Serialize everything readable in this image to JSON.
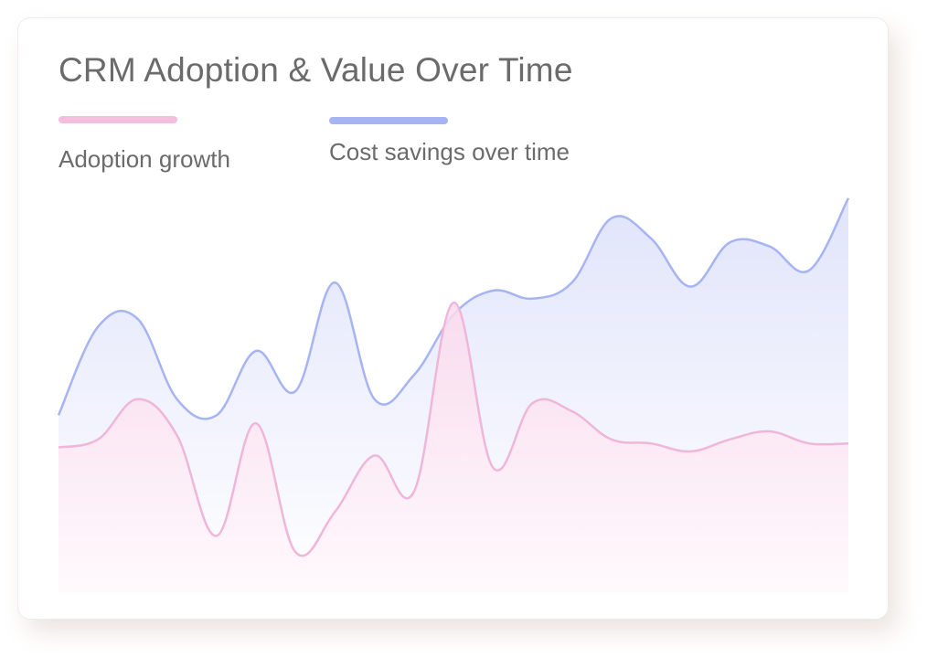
{
  "chart_data": {
    "type": "area",
    "title": "CRM Adoption & Value Over Time",
    "xlabel": "",
    "ylabel": "",
    "grid": false,
    "legend_position": "top-left",
    "x": [
      0,
      1,
      2,
      3,
      4,
      5,
      6,
      7,
      8,
      9,
      10,
      11,
      12,
      13,
      14,
      15,
      16,
      17,
      18,
      19,
      20
    ],
    "ylim": [
      0,
      100
    ],
    "series": [
      {
        "name": "Cost savings over time",
        "color": "#a6b4f4",
        "values": [
          44,
          66,
          68,
          48,
          44,
          60,
          50,
          77,
          48,
          54,
          69,
          75,
          73,
          77,
          93,
          88,
          76,
          87,
          86,
          80,
          98
        ]
      },
      {
        "name": "Adoption growth",
        "color": "#f0b6da",
        "values": [
          36,
          38,
          48,
          39,
          14,
          42,
          10,
          20,
          34,
          25,
          72,
          31,
          47,
          45,
          38,
          37,
          35,
          38,
          40,
          37,
          37
        ]
      }
    ]
  },
  "legend": [
    {
      "label": "Adoption growth",
      "color": "#f4bedf"
    },
    {
      "label": "Cost savings over time",
      "color": "#a6b4f4"
    }
  ]
}
